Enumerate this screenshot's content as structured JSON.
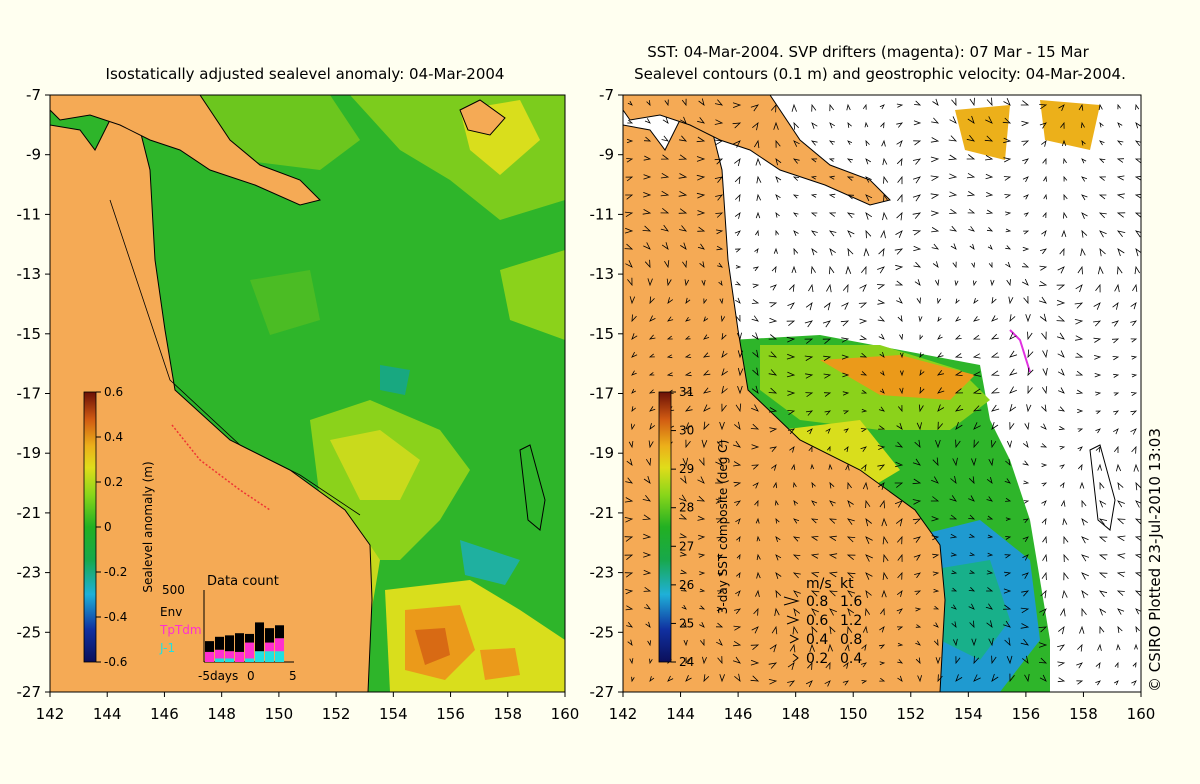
{
  "left_panel": {
    "title": "Isostatically adjusted sealevel anomaly: 04-Mar-2004",
    "y_ticks": [
      "-7",
      "-9",
      "-11",
      "-13",
      "-15",
      "-17",
      "-19",
      "-21",
      "-23",
      "-25",
      "-27"
    ],
    "x_ticks": [
      "142",
      "144",
      "146",
      "148",
      "150",
      "152",
      "154",
      "156",
      "158",
      "160"
    ],
    "colorbar": {
      "label": "Sealevel anomaly (m)",
      "ticks": [
        "0.6",
        "0.4",
        "0.2",
        "0",
        "-0.2",
        "-0.4",
        "-0.6"
      ],
      "colors": [
        "#0b0f5a",
        "#1030a0",
        "#1a6ad0",
        "#1fb0d8",
        "#18b08a",
        "#19a843",
        "#3cc01a",
        "#8ad61a",
        "#d6df1d",
        "#ecc21a",
        "#eb9a1a",
        "#d86a14",
        "#b83a10",
        "#7d1208"
      ]
    },
    "data_count": {
      "title": "Data count",
      "y_max": "500",
      "x_labels": [
        "-5days",
        "0",
        "5"
      ],
      "legend": [
        {
          "label": "Env",
          "color": "#000000"
        },
        {
          "label": "TpTdm",
          "color": "#ff2fd0"
        },
        {
          "label": "J-1",
          "color": "#20e0e0"
        }
      ],
      "bars": [
        {
          "env": 0.15,
          "tp": 0.14,
          "j1": 0.0
        },
        {
          "env": 0.18,
          "tp": 0.12,
          "j1": 0.05
        },
        {
          "env": 0.22,
          "tp": 0.1,
          "j1": 0.05
        },
        {
          "env": 0.26,
          "tp": 0.14,
          "j1": 0.0
        },
        {
          "env": 0.12,
          "tp": 0.22,
          "j1": 0.05
        },
        {
          "env": 0.4,
          "tp": 0.0,
          "j1": 0.15
        },
        {
          "env": 0.2,
          "tp": 0.12,
          "j1": 0.15
        },
        {
          "env": 0.18,
          "tp": 0.18,
          "j1": 0.15
        }
      ]
    }
  },
  "right_panel": {
    "title_line1": "SST: 04-Mar-2004. SVP drifters (magenta): 07 Mar - 15 Mar",
    "title_line2": "Sealevel contours (0.1 m) and geostrophic velocity: 04-Mar-2004.",
    "y_ticks": [
      "-7",
      "-9",
      "-11",
      "-13",
      "-15",
      "-17",
      "-19",
      "-21",
      "-23",
      "-25",
      "-27"
    ],
    "x_ticks": [
      "142",
      "144",
      "146",
      "148",
      "150",
      "152",
      "154",
      "156",
      "158",
      "160"
    ],
    "colorbar": {
      "label": "3-day SST composite (deg C)",
      "ticks": [
        "31",
        "30",
        "29",
        "28",
        "27",
        "26",
        "25",
        "24"
      ],
      "colors": [
        "#0b0f5a",
        "#1030a0",
        "#1a6ad0",
        "#1fb0d8",
        "#18b08a",
        "#19a843",
        "#3cc01a",
        "#8ad61a",
        "#d6df1d",
        "#ecc21a",
        "#eb9a1a",
        "#d86a14",
        "#b83a10",
        "#7d1208"
      ]
    },
    "velocity_legend": {
      "header_ms": "m/s",
      "header_kt": "kt",
      "rows": [
        {
          "ms": "0.8",
          "kt": "1.6"
        },
        {
          "ms": "0.6",
          "kt": "1.2"
        },
        {
          "ms": "0.4",
          "kt": "0.8"
        },
        {
          "ms": "0.2",
          "kt": "0.4"
        }
      ]
    }
  },
  "credit": "© CSIRO Plotted 23-Jul-2010 13:03",
  "colors": {
    "background": "#fffff0",
    "land": "#f5aa55",
    "ocean_green": "#2eb52a",
    "ocean_yellowgreen": "#8bd21b",
    "ocean_yellow": "#d9de1c",
    "ocean_orange": "#eb9a1a",
    "drifter": "#e030e0"
  }
}
